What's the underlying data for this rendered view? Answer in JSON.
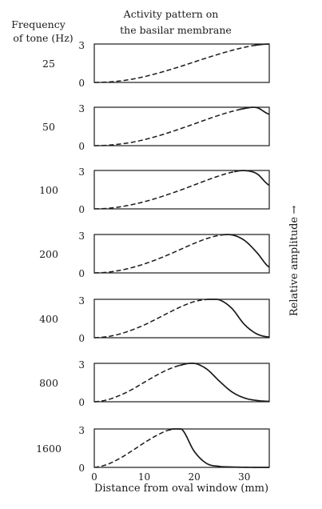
{
  "header": {
    "freq_label_line1": "Frequency",
    "freq_label_line2": "of tone (Hz)",
    "title_line1": "Activity pattern on",
    "title_line2": "the basilar membrane"
  },
  "chart_data": {
    "type": "line",
    "title": "Activity pattern on the basilar membrane",
    "xlabel": "Distance from oval window (mm)",
    "ylabel": "Relative amplitude",
    "ylabel_arrow": "→",
    "xlim": [
      0,
      35
    ],
    "ylim": [
      0,
      3
    ],
    "x_ticks": [
      0,
      10,
      20,
      30
    ],
    "y_ticks": [
      0,
      3
    ],
    "x": [
      0,
      2.5,
      5,
      7.5,
      10,
      12.5,
      15,
      17.5,
      20,
      22.5,
      25,
      27.5,
      30,
      32.5,
      35
    ],
    "series": [
      {
        "name": "25",
        "peak_x": 35,
        "values": [
          0.0,
          0.03,
          0.11,
          0.25,
          0.45,
          0.7,
          0.98,
          1.28,
          1.6,
          1.92,
          2.22,
          2.5,
          2.74,
          2.92,
          3.0
        ]
      },
      {
        "name": "50",
        "peak_x": 32,
        "values": [
          0.0,
          0.03,
          0.12,
          0.26,
          0.47,
          0.73,
          1.03,
          1.36,
          1.7,
          2.05,
          2.38,
          2.67,
          2.9,
          2.97,
          2.45
        ]
      },
      {
        "name": "100",
        "peak_x": 31,
        "values": [
          0.0,
          0.04,
          0.15,
          0.33,
          0.56,
          0.84,
          1.16,
          1.5,
          1.87,
          2.24,
          2.58,
          2.86,
          2.99,
          2.75,
          1.85
        ]
      },
      {
        "name": "200",
        "peak_x": 29,
        "values": [
          0.0,
          0.05,
          0.19,
          0.41,
          0.7,
          1.05,
          1.45,
          1.88,
          2.31,
          2.68,
          2.93,
          2.97,
          2.55,
          1.6,
          0.45
        ]
      },
      {
        "name": "400",
        "peak_x": 25,
        "values": [
          0.0,
          0.08,
          0.28,
          0.6,
          1.0,
          1.48,
          1.98,
          2.45,
          2.82,
          2.99,
          2.96,
          2.3,
          1.05,
          0.3,
          0.05
        ]
      },
      {
        "name": "800",
        "peak_x": 20,
        "values": [
          0.0,
          0.14,
          0.48,
          0.95,
          1.52,
          2.08,
          2.56,
          2.88,
          3.0,
          2.55,
          1.62,
          0.78,
          0.3,
          0.1,
          0.03
        ]
      },
      {
        "name": "1600",
        "peak_x": 18,
        "values": [
          0.0,
          0.22,
          0.68,
          1.28,
          1.92,
          2.5,
          2.92,
          2.98,
          1.25,
          0.3,
          0.08,
          0.03,
          0.01,
          0.0,
          0.0
        ]
      }
    ]
  }
}
